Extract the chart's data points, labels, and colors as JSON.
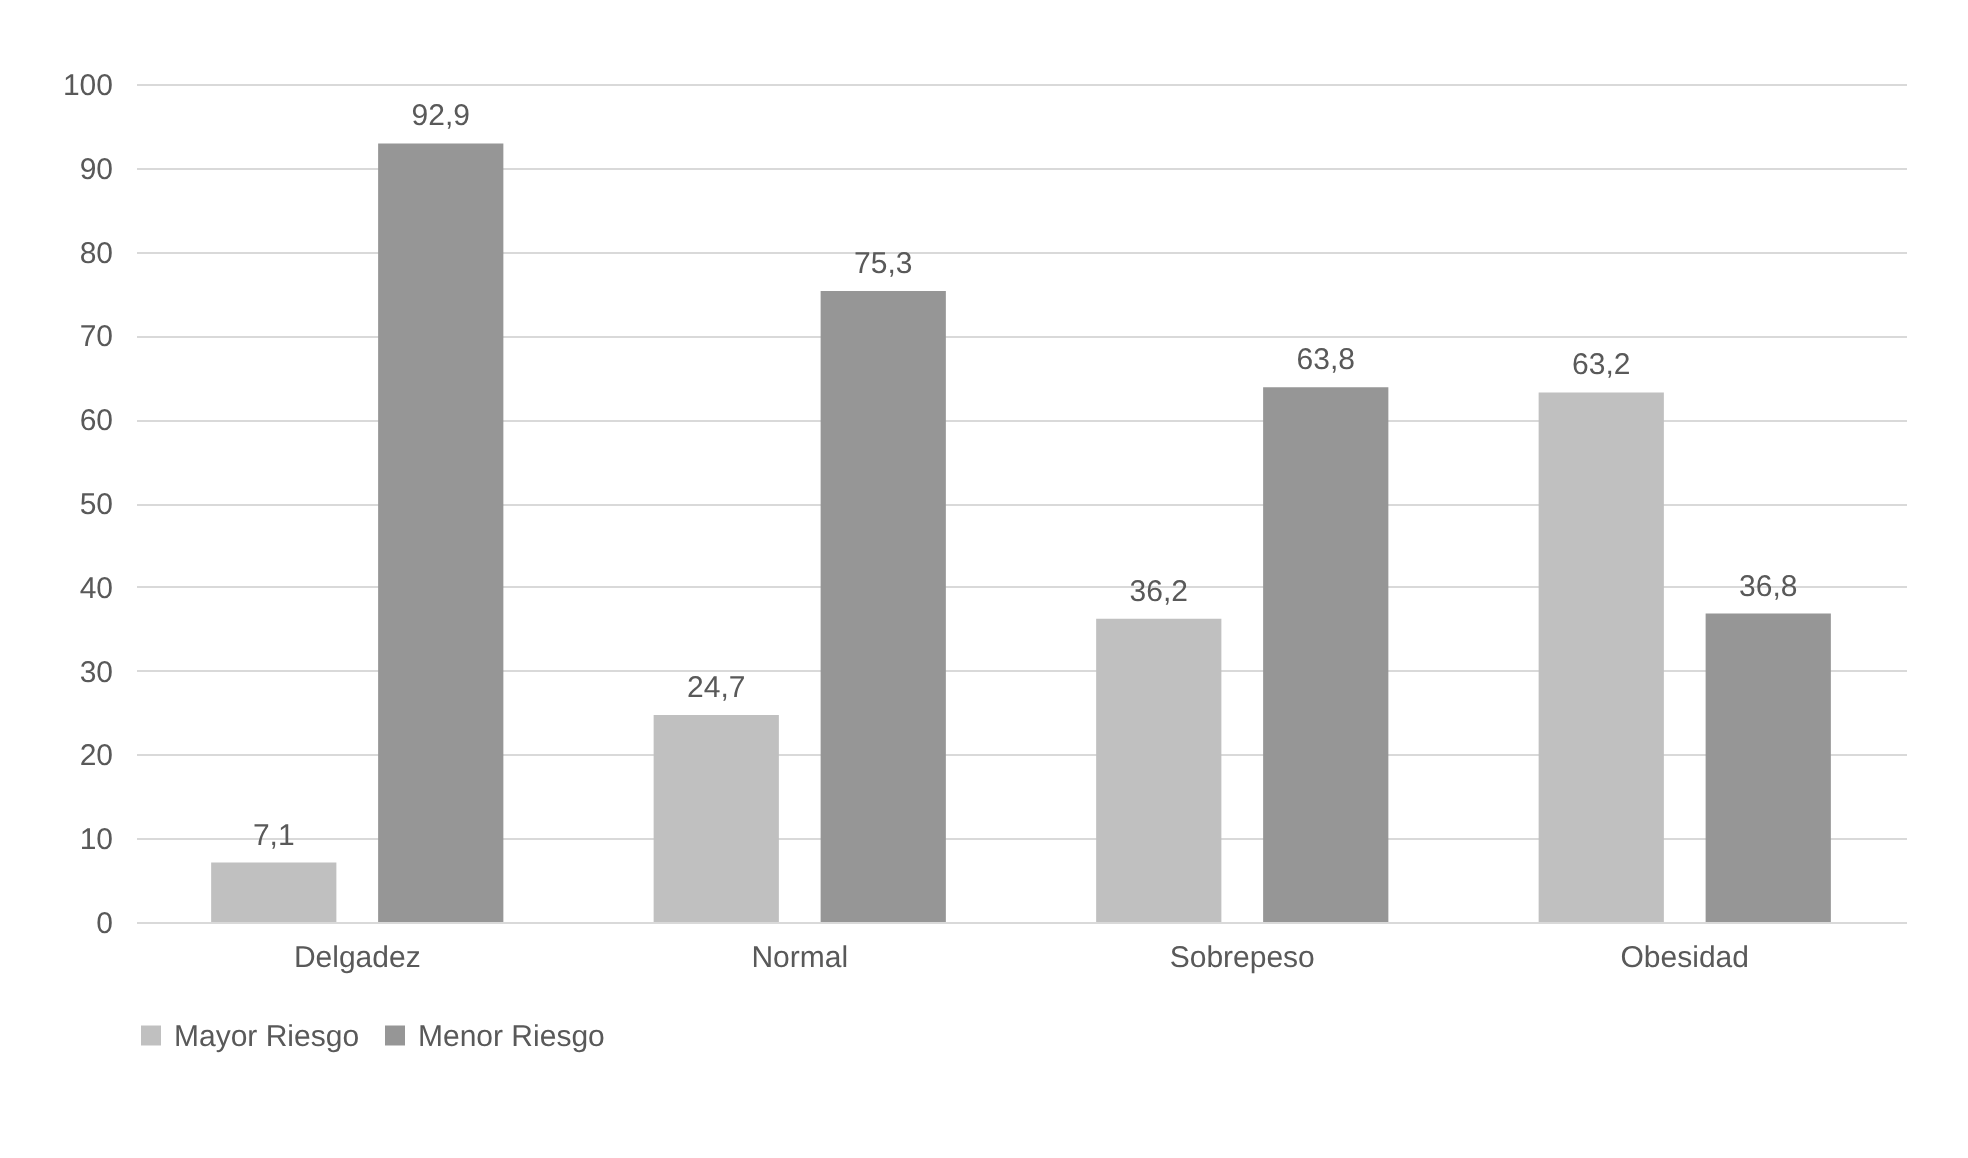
{
  "chart_data": {
    "type": "bar",
    "categories": [
      "Delgadez",
      "Normal",
      "Sobrepeso",
      "Obesidad"
    ],
    "series": [
      {
        "name": "Mayor Riesgo",
        "color": "#c0c0c0",
        "values": [
          7.1,
          24.7,
          36.2,
          63.2
        ],
        "value_labels": [
          "7,1",
          "24,7",
          "36,2",
          "63,2"
        ]
      },
      {
        "name": "Menor Riesgo",
        "color": "#969696",
        "values": [
          92.9,
          75.3,
          63.8,
          36.8
        ],
        "value_labels": [
          "92,9",
          "75,3",
          "63,8",
          "36,8"
        ]
      }
    ],
    "ylim": [
      0,
      100
    ],
    "yticks": [
      0,
      10,
      20,
      30,
      40,
      50,
      60,
      70,
      80,
      90,
      100
    ],
    "grid": "y",
    "legend": "bottom"
  }
}
